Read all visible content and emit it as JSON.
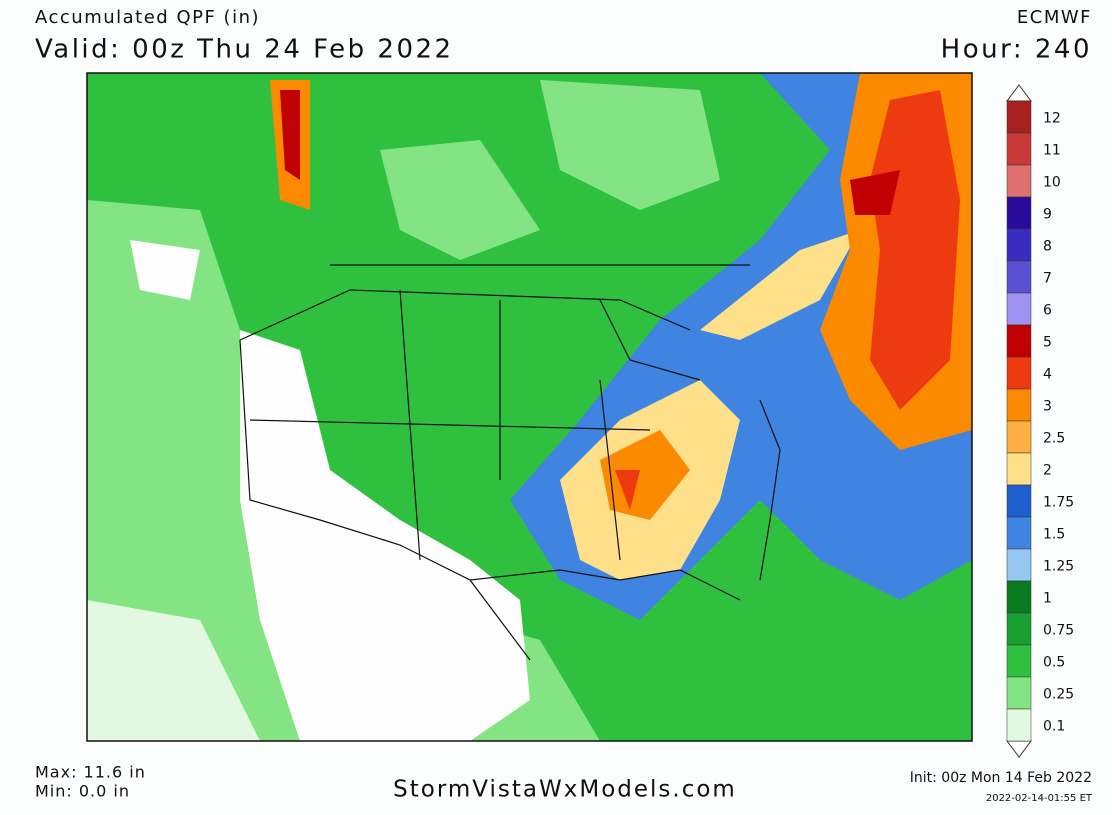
{
  "header": {
    "title": "Accumulated QPF (in)",
    "valid": "Valid: 00z Thu 24 Feb 2022",
    "model": "ECMWF",
    "hour": "Hour: 240"
  },
  "legend": {
    "levels": [
      {
        "label": "12",
        "color": "#a82020"
      },
      {
        "label": "11",
        "color": "#c83a3a"
      },
      {
        "label": "10",
        "color": "#e07070"
      },
      {
        "label": "9",
        "color": "#2a0c9c"
      },
      {
        "label": "8",
        "color": "#3a2cc0"
      },
      {
        "label": "7",
        "color": "#5a50d4"
      },
      {
        "label": "6",
        "color": "#a092f2"
      },
      {
        "label": "5",
        "color": "#c00000"
      },
      {
        "label": "4",
        "color": "#ee3a10"
      },
      {
        "label": "3",
        "color": "#fb8a00"
      },
      {
        "label": "2.5",
        "color": "#ffb040"
      },
      {
        "label": "2",
        "color": "#ffe08a"
      },
      {
        "label": "1.75",
        "color": "#1e5fcf"
      },
      {
        "label": "1.5",
        "color": "#3f84e0"
      },
      {
        "label": "1.25",
        "color": "#96c6f2"
      },
      {
        "label": "1",
        "color": "#0a7a1e"
      },
      {
        "label": "0.75",
        "color": "#18a030"
      },
      {
        "label": "0.5",
        "color": "#30c040"
      },
      {
        "label": "0.25",
        "color": "#84e484"
      },
      {
        "label": "0.1",
        "color": "#e2f8e0"
      }
    ]
  },
  "footer": {
    "max": "Max: 11.6 in",
    "min": "Min: 0.0 in",
    "site": "StormVistaWxModels.com",
    "init": "Init: 00z Mon 14 Feb 2022",
    "timestamp": "2022-02-14-01:55 ET"
  }
}
